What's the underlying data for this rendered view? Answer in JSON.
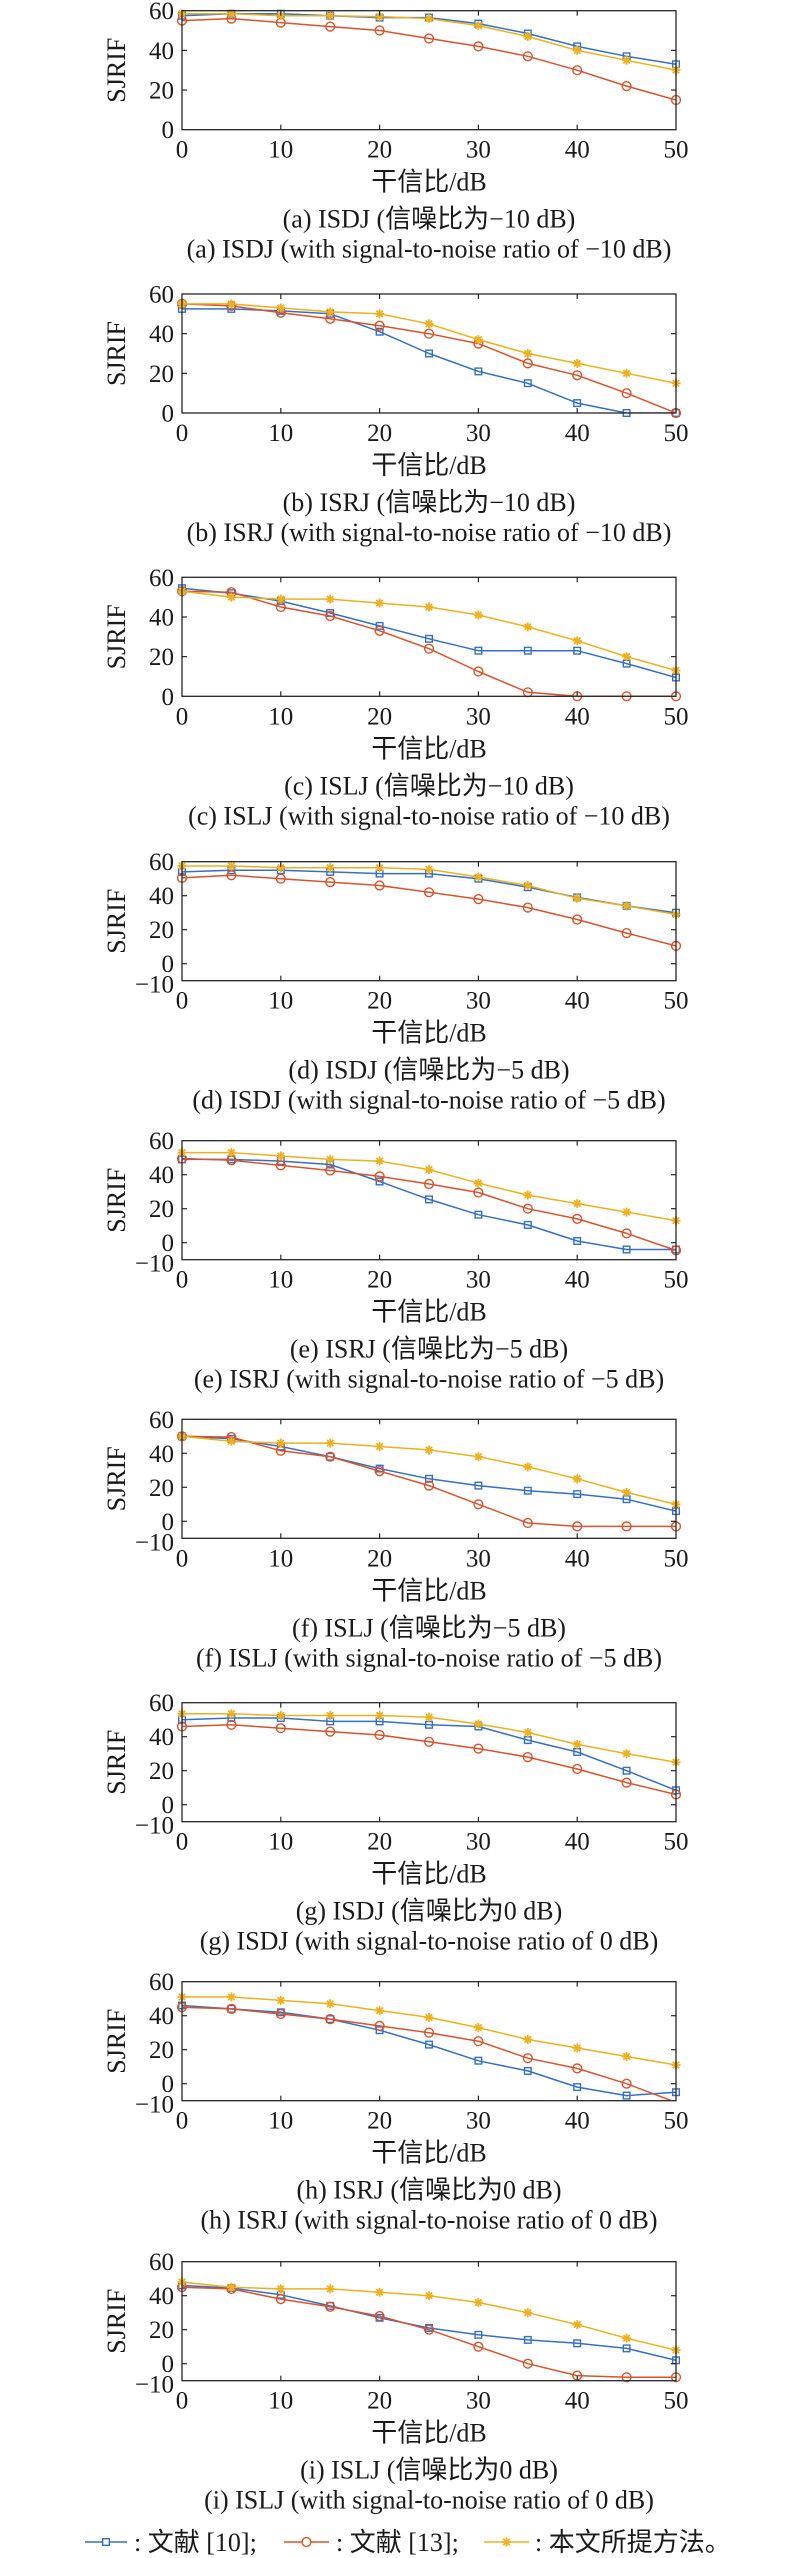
{
  "legend": {
    "placement": "bottom",
    "items": [
      {
        "separator": ":",
        "name": "文献 [10]",
        "terminator": ";",
        "color": "#3570C4",
        "marker": "square"
      },
      {
        "separator": ":",
        "name": "文献 [13]",
        "terminator": ";",
        "color": "#D9532C",
        "marker": "circle"
      },
      {
        "separator": ":",
        "name": "本文所提方法",
        "terminator": "。",
        "color": "#EDB120",
        "marker": "star"
      }
    ]
  },
  "chart_data": [
    {
      "type": "line",
      "caption_cn": "(a) ISDJ (信噪比为−10 dB)",
      "caption_en": "(a) ISDJ (with signal-to-noise ratio of −10 dB)",
      "xlabel": "干信比/dB",
      "ylabel": "SJRIF",
      "x": [
        0,
        5,
        10,
        15,
        20,
        25,
        30,
        35,
        40,
        45,
        50
      ],
      "xlim": [
        0,
        50
      ],
      "xticks": [
        0,
        10,
        20,
        30,
        40,
        50
      ],
      "ylim": [
        0,
        60
      ],
      "yticks": [
        0,
        20,
        40,
        60
      ],
      "ytick_labels": [
        "0",
        "20",
        "40",
        "60"
      ],
      "grid": false,
      "legend_position": "bottom",
      "series": [
        {
          "name": "文献 [10]",
          "color": "#3570C4",
          "marker": "square",
          "values": [
            57.5,
            58.5,
            58.5,
            57.5,
            56.5,
            56.5,
            53.5,
            48.5,
            42,
            37,
            33
          ]
        },
        {
          "name": "文献 [13]",
          "color": "#D9532C",
          "marker": "circle",
          "values": [
            55,
            56,
            54,
            52,
            50,
            46,
            42,
            37,
            30,
            22,
            15
          ]
        },
        {
          "name": "本文所提方法",
          "color": "#EDB120",
          "marker": "star",
          "values": [
            58.5,
            58.5,
            57.5,
            57.5,
            57,
            56,
            52.5,
            47,
            40,
            35,
            30
          ]
        }
      ]
    },
    {
      "type": "line",
      "caption_cn": "(b) ISRJ (信噪比为−10 dB)",
      "caption_en": "(b) ISRJ (with signal-to-noise ratio of −10 dB)",
      "xlabel": "干信比/dB",
      "ylabel": "SJRIF",
      "x": [
        0,
        5,
        10,
        15,
        20,
        25,
        30,
        35,
        40,
        45,
        50
      ],
      "xlim": [
        0,
        50
      ],
      "xticks": [
        0,
        10,
        20,
        30,
        40,
        50
      ],
      "ylim": [
        0,
        60
      ],
      "yticks": [
        0,
        20,
        40,
        60
      ],
      "ytick_labels": [
        "0",
        "20",
        "40",
        "60"
      ],
      "grid": false,
      "legend_position": "bottom",
      "series": [
        {
          "name": "文献 [10]",
          "color": "#3570C4",
          "marker": "square",
          "values": [
            52.5,
            52.5,
            51.5,
            50,
            41,
            30,
            21,
            15,
            5,
            0,
            0
          ]
        },
        {
          "name": "文献 [13]",
          "color": "#D9532C",
          "marker": "circle",
          "values": [
            55,
            54,
            50.5,
            47.5,
            44,
            40,
            35,
            25,
            19,
            10,
            0
          ]
        },
        {
          "name": "本文所提方法",
          "color": "#EDB120",
          "marker": "star",
          "values": [
            55,
            55,
            53,
            51,
            50,
            45,
            37,
            30,
            25,
            20,
            15
          ]
        }
      ]
    },
    {
      "type": "line",
      "caption_cn": "(c) ISLJ (信噪比为−10 dB)",
      "caption_en": "(c) ISLJ (with signal-to-noise ratio of −10 dB)",
      "xlabel": "干信比/dB",
      "ylabel": "SJRIF",
      "x": [
        0,
        5,
        10,
        15,
        20,
        25,
        30,
        35,
        40,
        45,
        50
      ],
      "xlim": [
        0,
        50
      ],
      "xticks": [
        0,
        10,
        20,
        30,
        40,
        50
      ],
      "ylim": [
        0,
        60
      ],
      "yticks": [
        0,
        20,
        40,
        60
      ],
      "ytick_labels": [
        "0",
        "20",
        "40",
        "60"
      ],
      "grid": false,
      "legend_position": "bottom",
      "series": [
        {
          "name": "文献 [10]",
          "color": "#3570C4",
          "marker": "square",
          "values": [
            54.5,
            52,
            48,
            42,
            35.5,
            29,
            23,
            23,
            23,
            16.5,
            9.5
          ]
        },
        {
          "name": "文献 [13]",
          "color": "#D9532C",
          "marker": "circle",
          "values": [
            53,
            52.5,
            45,
            40.5,
            33,
            24,
            12.5,
            2,
            0,
            0,
            0
          ]
        },
        {
          "name": "本文所提方法",
          "color": "#EDB120",
          "marker": "star",
          "values": [
            53,
            50,
            49,
            49,
            47,
            45,
            41,
            35,
            28,
            20,
            13
          ]
        }
      ]
    },
    {
      "type": "line",
      "caption_cn": "(d) ISDJ (信噪比为−5 dB)",
      "caption_en": "(d) ISDJ (with signal-to-noise ratio of −5 dB)",
      "xlabel": "干信比/dB",
      "ylabel": "SJRIF",
      "x": [
        0,
        5,
        10,
        15,
        20,
        25,
        30,
        35,
        40,
        45,
        50
      ],
      "xlim": [
        0,
        50
      ],
      "xticks": [
        0,
        10,
        20,
        30,
        40,
        50
      ],
      "ylim": [
        -10,
        60
      ],
      "yticks": [
        -10,
        0,
        20,
        40,
        60
      ],
      "ytick_labels": [
        "−10",
        "0",
        "20",
        "40",
        "60"
      ],
      "grid": false,
      "legend_position": "bottom",
      "series": [
        {
          "name": "文献 [10]",
          "color": "#3570C4",
          "marker": "square",
          "values": [
            54,
            55,
            55,
            54,
            53,
            53,
            50,
            45,
            39,
            34,
            30
          ]
        },
        {
          "name": "文献 [13]",
          "color": "#D9532C",
          "marker": "circle",
          "values": [
            50.5,
            52,
            50,
            48,
            46,
            42,
            38,
            33,
            26,
            18,
            10.5
          ]
        },
        {
          "name": "本文所提方法",
          "color": "#EDB120",
          "marker": "star",
          "values": [
            57.5,
            57.5,
            56.5,
            56.5,
            56.5,
            55.5,
            51,
            46,
            38.5,
            34,
            29
          ]
        }
      ]
    },
    {
      "type": "line",
      "caption_cn": "(e) ISRJ (信噪比为−5 dB)",
      "caption_en": "(e) ISRJ (with signal-to-noise ratio of −5 dB)",
      "xlabel": "干信比/dB",
      "ylabel": "SJRIF",
      "x": [
        0,
        5,
        10,
        15,
        20,
        25,
        30,
        35,
        40,
        45,
        50
      ],
      "xlim": [
        0,
        50
      ],
      "xticks": [
        0,
        10,
        20,
        30,
        40,
        50
      ],
      "ylim": [
        -10,
        60
      ],
      "yticks": [
        -10,
        0,
        20,
        40,
        60
      ],
      "ytick_labels": [
        "−10",
        "0",
        "20",
        "40",
        "60"
      ],
      "grid": false,
      "legend_position": "bottom",
      "series": [
        {
          "name": "文献 [10]",
          "color": "#3570C4",
          "marker": "square",
          "values": [
            49,
            49,
            48,
            46,
            36,
            25.5,
            16.5,
            10.5,
            1,
            -4,
            -4
          ]
        },
        {
          "name": "文献 [13]",
          "color": "#D9532C",
          "marker": "circle",
          "values": [
            49.5,
            48.5,
            45.5,
            42.5,
            39,
            34.5,
            29.5,
            20,
            14,
            5.5,
            -4.5
          ]
        },
        {
          "name": "本文所提方法",
          "color": "#EDB120",
          "marker": "star",
          "values": [
            53,
            53,
            51,
            49,
            48,
            43,
            35,
            28,
            23,
            18,
            13
          ]
        }
      ]
    },
    {
      "type": "line",
      "caption_cn": "(f) ISLJ (信噪比为−5 dB)",
      "caption_en": "(f) ISLJ (with signal-to-noise ratio of −5 dB)",
      "xlabel": "干信比/dB",
      "ylabel": "SJRIF",
      "x": [
        0,
        5,
        10,
        15,
        20,
        25,
        30,
        35,
        40,
        45,
        50
      ],
      "xlim": [
        0,
        50
      ],
      "xticks": [
        0,
        10,
        20,
        30,
        40,
        50
      ],
      "ylim": [
        -10,
        60
      ],
      "yticks": [
        -10,
        0,
        20,
        40,
        60
      ],
      "ytick_labels": [
        "−10",
        "0",
        "20",
        "40",
        "60"
      ],
      "grid": false,
      "legend_position": "bottom",
      "series": [
        {
          "name": "文献 [10]",
          "color": "#3570C4",
          "marker": "square",
          "values": [
            50,
            48.5,
            44,
            38,
            31,
            25,
            21,
            18,
            16,
            13,
            6
          ]
        },
        {
          "name": "文献 [13]",
          "color": "#D9532C",
          "marker": "circle",
          "values": [
            50,
            49.5,
            41.5,
            38,
            29.5,
            21,
            10,
            -1,
            -3,
            -3,
            -3
          ]
        },
        {
          "name": "本文所提方法",
          "color": "#EDB120",
          "marker": "star",
          "values": [
            50,
            47,
            46,
            46,
            44,
            42,
            38,
            32,
            25,
            17,
            10
          ]
        }
      ]
    },
    {
      "type": "line",
      "caption_cn": "(g) ISDJ (信噪比为0 dB)",
      "caption_en": "(g) ISDJ (with signal-to-noise ratio of 0 dB)",
      "xlabel": "干信比/dB",
      "ylabel": "SJRIF",
      "x": [
        0,
        5,
        10,
        15,
        20,
        25,
        30,
        35,
        40,
        45,
        50
      ],
      "xlim": [
        0,
        50
      ],
      "xticks": [
        0,
        10,
        20,
        30,
        40,
        50
      ],
      "ylim": [
        -10,
        60
      ],
      "yticks": [
        -10,
        0,
        20,
        40,
        60
      ],
      "ytick_labels": [
        "−10",
        "0",
        "20",
        "40",
        "60"
      ],
      "grid": false,
      "legend_position": "bottom",
      "series": [
        {
          "name": "文献 [10]",
          "color": "#3570C4",
          "marker": "square",
          "values": [
            50,
            51,
            51,
            49,
            49,
            47,
            46,
            38,
            31,
            20,
            8.5
          ]
        },
        {
          "name": "文献 [13]",
          "color": "#D9532C",
          "marker": "circle",
          "values": [
            46,
            47,
            45,
            43,
            41,
            37,
            33,
            28,
            21,
            13,
            6
          ]
        },
        {
          "name": "本文所提方法",
          "color": "#EDB120",
          "marker": "star",
          "values": [
            53.5,
            53.5,
            52.5,
            52.5,
            52.5,
            51.5,
            47.5,
            42.5,
            35.5,
            30,
            25
          ]
        }
      ]
    },
    {
      "type": "line",
      "caption_cn": "(h) ISRJ (信噪比为0 dB)",
      "caption_en": "(h) ISRJ (with signal-to-noise ratio of 0 dB)",
      "xlabel": "干信比/dB",
      "ylabel": "SJRIF",
      "x": [
        0,
        5,
        10,
        15,
        20,
        25,
        30,
        35,
        40,
        45,
        50
      ],
      "xlim": [
        0,
        50
      ],
      "xticks": [
        0,
        10,
        20,
        30,
        40,
        50
      ],
      "ylim": [
        -10,
        60
      ],
      "yticks": [
        -10,
        0,
        20,
        40,
        60
      ],
      "ytick_labels": [
        "−10",
        "0",
        "20",
        "40",
        "60"
      ],
      "grid": false,
      "legend_position": "bottom",
      "series": [
        {
          "name": "文献 [10]",
          "color": "#3570C4",
          "marker": "square",
          "values": [
            46,
            44,
            42,
            38,
            31.5,
            23,
            13.5,
            7.5,
            -2,
            -7,
            -5
          ]
        },
        {
          "name": "文献 [13]",
          "color": "#D9532C",
          "marker": "circle",
          "values": [
            45,
            44,
            41,
            38,
            34,
            30,
            25,
            15,
            9,
            0,
            -11
          ]
        },
        {
          "name": "本文所提方法",
          "color": "#EDB120",
          "marker": "star",
          "values": [
            51,
            51,
            49,
            47,
            43,
            39,
            33,
            26,
            21,
            16,
            11
          ]
        }
      ]
    },
    {
      "type": "line",
      "caption_cn": "(i) ISLJ (信噪比为0 dB)",
      "caption_en": "(i) ISLJ (with signal-to-noise ratio of 0 dB)",
      "xlabel": "干信比/dB",
      "ylabel": "SJRIF",
      "x": [
        0,
        5,
        10,
        15,
        20,
        25,
        30,
        35,
        40,
        45,
        50
      ],
      "xlim": [
        0,
        50
      ],
      "xticks": [
        0,
        10,
        20,
        30,
        40,
        50
      ],
      "ylim": [
        -10,
        60
      ],
      "yticks": [
        -10,
        0,
        20,
        40,
        60
      ],
      "ytick_labels": [
        "−10",
        "0",
        "20",
        "40",
        "60"
      ],
      "grid": false,
      "legend_position": "bottom",
      "series": [
        {
          "name": "文献 [10]",
          "color": "#3570C4",
          "marker": "square",
          "values": [
            46,
            44.5,
            40.5,
            34,
            27,
            21,
            17,
            14,
            12,
            9,
            2
          ]
        },
        {
          "name": "文献 [13]",
          "color": "#D9532C",
          "marker": "circle",
          "values": [
            45,
            44,
            38,
            33.5,
            28,
            20,
            10,
            0,
            -7,
            -8,
            -8
          ]
        },
        {
          "name": "本文所提方法",
          "color": "#EDB120",
          "marker": "star",
          "values": [
            48,
            45,
            44,
            44,
            42,
            40,
            36,
            30,
            23,
            15,
            8
          ]
        }
      ]
    }
  ]
}
